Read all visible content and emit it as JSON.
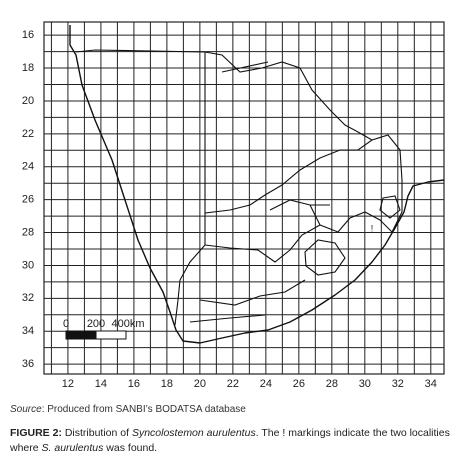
{
  "map": {
    "xlim": [
      10.55,
      34.8
    ],
    "ylim": [
      15.2,
      36.6
    ],
    "xticks": [
      12,
      14,
      16,
      18,
      20,
      22,
      24,
      26,
      28,
      30,
      32,
      34
    ],
    "yticks": [
      16,
      18,
      20,
      22,
      24,
      26,
      28,
      30,
      32,
      34,
      36
    ],
    "scale_labels": [
      "0",
      "200",
      "400km"
    ],
    "marker": "!"
  },
  "source": {
    "label": "Source",
    "text": ": Produced from SANBI’s BODATSA database"
  },
  "caption": {
    "label": "FIGURE 2:",
    "text1": " Distribution of ",
    "species": "Syncolostemon aurulentus",
    "text2": ". The ! markings indicate the two localities where ",
    "species_short": "S. aurulentus",
    "text3": " was found."
  }
}
